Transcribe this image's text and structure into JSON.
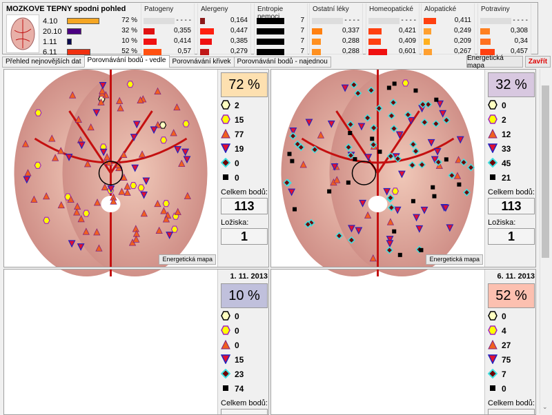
{
  "header": {
    "title": "MOZKOVE TEPNY spodni pohled",
    "rows": [
      {
        "date": "4.10",
        "pct": 72,
        "pct_label": "72 %",
        "color": "#f5a623"
      },
      {
        "date": "20.10",
        "pct": 32,
        "pct_label": "32 %",
        "color": "#4b0082"
      },
      {
        "date": "1.11",
        "pct": 10,
        "pct_label": "10 %",
        "color": "#0a0a50"
      },
      {
        "date": "6.11",
        "pct": 52,
        "pct_label": "52 %",
        "color": "#f03010"
      }
    ],
    "groups": [
      {
        "label": "Patogeny",
        "values": [
          "- - - -",
          "0,355",
          "0,414",
          "0,57"
        ],
        "levels": [
          null,
          0.355,
          0.414,
          0.57
        ],
        "colors": [
          "#ddd",
          "#e01010",
          "#f01010",
          "#ff5010"
        ]
      },
      {
        "label": "Alergeny",
        "values": [
          "0,164",
          "0,447",
          "0,385",
          "0,279"
        ],
        "levels": [
          0.164,
          0.447,
          0.385,
          0.279
        ],
        "colors": [
          "#8b1a1a",
          "#ff2010",
          "#f01010",
          "#c01818"
        ]
      },
      {
        "label": "Entropie nemoci",
        "values": [
          "7",
          "7",
          "7",
          "7"
        ],
        "levels": [
          1,
          1,
          1,
          1
        ],
        "colors": [
          "#000",
          "#000",
          "#000",
          "#000"
        ]
      },
      {
        "label": "Ostatní léky",
        "values": [
          "- - - -",
          "0,337",
          "0,288",
          "0,288"
        ],
        "levels": [
          null,
          0.337,
          0.288,
          0.288
        ],
        "colors": [
          "#ddd",
          "#ff8010",
          "#ff9020",
          "#ff9020"
        ]
      },
      {
        "label": "Homeopatické",
        "values": [
          "- - - -",
          "0,421",
          "0,409",
          "0,601"
        ],
        "levels": [
          null,
          0.421,
          0.409,
          0.601
        ],
        "colors": [
          "#ddd",
          "#ff4010",
          "#ff4010",
          "#f01010"
        ]
      },
      {
        "label": "Alopatické",
        "values": [
          "0,411",
          "0,249",
          "0,209",
          "0,267"
        ],
        "levels": [
          0.411,
          0.249,
          0.209,
          0.267
        ],
        "colors": [
          "#ff4010",
          "#ffa030",
          "#ffb020",
          "#ffa030"
        ]
      },
      {
        "label": "Potraviny",
        "values": [
          "- - - -",
          "0,308",
          "0,34",
          "0,457"
        ],
        "levels": [
          null,
          0.308,
          0.34,
          0.457
        ],
        "colors": [
          "#ddd",
          "#ff8020",
          "#ff7020",
          "#ff4010"
        ]
      }
    ]
  },
  "tabs": [
    "Přehled nejnovějších dat",
    "Porovnávání bodů - vedle",
    "Porovnávání křivek",
    "Porovnávání bodů - najednou"
  ],
  "buttons": {
    "energy_map": "Energetická mapa",
    "close": "Zavřít"
  },
  "labels": {
    "total": "Celkem bodů:",
    "foci": "Ložiska:",
    "energy_map": "Energetická mapa"
  },
  "quadrants": [
    {
      "date": "",
      "pct": "72 %",
      "pct_color": "#fde0b0",
      "counts": [
        "2",
        "15",
        "77",
        "19",
        "0",
        "0"
      ],
      "total": "113",
      "foci": "1"
    },
    {
      "date": "",
      "pct": "32 %",
      "pct_color": "#d8c8e0",
      "counts": [
        "0",
        "2",
        "12",
        "33",
        "45",
        "21"
      ],
      "total": "113",
      "foci": "1"
    },
    {
      "date": "1. 11. 2013",
      "pct": "10 %",
      "pct_color": "#c0c0dc",
      "counts": [
        "0",
        "0",
        "0",
        "15",
        "23",
        "74"
      ],
      "total": "",
      "foci": ""
    },
    {
      "date": "6. 11. 2013",
      "pct": "52 %",
      "pct_color": "#fcc0b0",
      "counts": [
        "0",
        "4",
        "27",
        "75",
        "7",
        "0"
      ],
      "total": "",
      "foci": ""
    }
  ],
  "legend_icons": [
    "hexagon-light-icon",
    "hexagon-yellow-icon",
    "triangle-up-icon",
    "triangle-down-icon",
    "diamond-icon",
    "square-icon"
  ]
}
